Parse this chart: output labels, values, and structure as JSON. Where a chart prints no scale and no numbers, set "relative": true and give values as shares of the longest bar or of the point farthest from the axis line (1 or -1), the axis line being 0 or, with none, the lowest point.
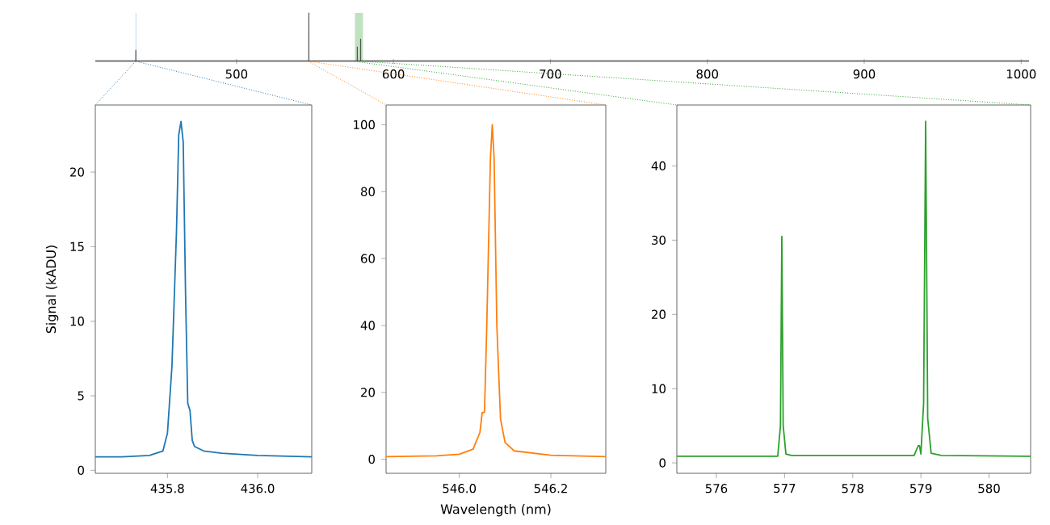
{
  "chart_data": [
    {
      "type": "line",
      "relative": true,
      "color": "#555555",
      "tick_labels": "x",
      "x": [
        410,
        435.8,
        435.83,
        435.86,
        546.04,
        546.07,
        546.1,
        576.93,
        576.96,
        576.99,
        579.04,
        579.07,
        579.1,
        1005
      ],
      "values": [
        0.01,
        0.01,
        0.23,
        0.01,
        0.01,
        1,
        0.01,
        0.01,
        0.3,
        0.01,
        0.01,
        0.46,
        0.01,
        0.01
      ],
      "xlim": [
        410,
        1005
      ],
      "xticks": [
        500,
        600,
        700,
        800,
        900,
        1000
      ],
      "bands": [
        {
          "axis": "x",
          "from": 435.64,
          "to": 436.12,
          "color": "#bcd6e9"
        },
        {
          "axis": "x",
          "from": 575.42,
          "to": 580.61,
          "color": "#c0e2c0"
        }
      ]
    },
    {
      "type": "line",
      "color": "#1f77b4",
      "ylabel": "Signal (kADU)",
      "x": [
        435.64,
        435.7,
        435.76,
        435.79,
        435.8,
        435.81,
        435.82,
        435.825,
        435.83,
        435.835,
        435.84,
        435.845,
        435.85,
        435.855,
        435.86,
        435.88,
        435.92,
        436.0,
        436.12
      ],
      "values": [
        0.9,
        0.9,
        1.0,
        1.3,
        2.5,
        7,
        16,
        22.5,
        23.4,
        22,
        12,
        4.5,
        4.0,
        2,
        1.6,
        1.3,
        1.15,
        1.0,
        0.9
      ],
      "xlim": [
        435.64,
        436.12
      ],
      "xticks": [
        435.8,
        {
          "value": 436.0,
          "label": "436.0"
        }
      ],
      "ylim": [
        -0.2,
        24.5
      ],
      "yticks": [
        0,
        5,
        10,
        15,
        20
      ]
    },
    {
      "type": "line",
      "color": "#ff7f0e",
      "xlabel": "Wavelength (nm)",
      "x": [
        545.84,
        545.95,
        546.0,
        546.03,
        546.045,
        546.05,
        546.055,
        546.06,
        546.068,
        546.072,
        546.076,
        546.082,
        546.09,
        546.1,
        546.12,
        546.2,
        546.32
      ],
      "values": [
        0.8,
        1.0,
        1.5,
        3,
        8,
        14,
        14,
        40,
        90,
        100,
        90,
        40,
        12,
        5,
        2.5,
        1.2,
        0.8
      ],
      "xlim": [
        545.84,
        546.32
      ],
      "xticks": [
        {
          "value": 546.0,
          "label": "546.0"
        },
        546.2
      ],
      "ylim": [
        -4.2,
        105.9
      ],
      "yticks": [
        0,
        20,
        40,
        60,
        80,
        100
      ]
    },
    {
      "type": "line",
      "color": "#2ca02c",
      "x": [
        575.42,
        576.9,
        576.94,
        576.96,
        576.98,
        577.02,
        577.1,
        578.9,
        578.96,
        578.98,
        579.0,
        579.04,
        579.07,
        579.1,
        579.15,
        579.3,
        580.61
      ],
      "values": [
        0.9,
        0.9,
        5,
        30.5,
        5,
        1.2,
        1.0,
        1.0,
        2.3,
        2.3,
        1.2,
        8,
        46,
        6,
        1.3,
        1.0,
        0.9
      ],
      "xlim": [
        575.42,
        580.61
      ],
      "xticks": [
        576,
        577,
        578,
        579,
        580
      ],
      "ylim": [
        -1.4,
        48.2
      ],
      "yticks": [
        0,
        10,
        20,
        30,
        40
      ]
    }
  ]
}
